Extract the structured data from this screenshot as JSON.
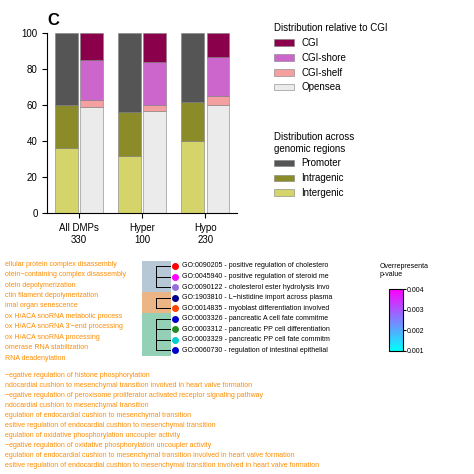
{
  "chart_data": {
    "type": "bar",
    "stacked": true,
    "title": "C",
    "categories": [
      "All DMPs\n330",
      "Hyper\n100",
      "Hypo\n230"
    ],
    "ylim": [
      0,
      100
    ],
    "yticks": [
      0,
      20,
      40,
      60,
      80,
      100
    ],
    "groups": [
      {
        "title": "Distribution across\ngenomic regions",
        "series": [
          {
            "name": "Intergenic",
            "color": "#D4D46A",
            "values": [
              36,
              32,
              40
            ]
          },
          {
            "name": "Intragenic",
            "color": "#8B8B2A",
            "values": [
              24,
              24,
              22
            ]
          },
          {
            "name": "Promoter",
            "color": "#555555",
            "values": [
              40,
              44,
              38
            ]
          }
        ]
      },
      {
        "title": "Distribution relative to CGI",
        "series": [
          {
            "name": "Opensea",
            "color": "#EBEBEB",
            "values": [
              59,
              57,
              60
            ]
          },
          {
            "name": "CGI-shelf",
            "color": "#F4A0A0",
            "values": [
              4,
              3,
              5
            ]
          },
          {
            "name": "CGI-shore",
            "color": "#CC66CC",
            "values": [
              22,
              24,
              22
            ]
          },
          {
            "name": "CGI",
            "color": "#8B004B",
            "values": [
              15,
              16,
              13
            ]
          }
        ]
      }
    ],
    "annotations": [
      {
        "color": "#FF8C00",
        "lines": [
          "ellular protein complex disassembly",
          "otein−containing complex disassembly",
          "otein depolymerization",
          "ctin filament depolymerization",
          "imal organ senescence",
          "ox H/ACA snoRNA metabolic process",
          "ox H/ACA snoRNA 3'−end processing",
          "ox H/ACA snoRNA processing",
          "omerase RNA stabilization",
          "RNA deadenylation"
        ]
      },
      {
        "color": "#FF8C00",
        "lines": [
          "−egative regulation of histone phosphorylation",
          "ndocardial cushion to mesenchymal transition involved in heart valve formation",
          "−egative regulation of peroxisome proliferator activated receptor signaling pathway",
          "ndocardial cushion to mesenchymal transition",
          "egulation of endocardial cushion to mesenchymal transition",
          "esitive regulation of endocardial cushion to mesenchymal transition",
          "egulation of oxidative phosphorylation uncoupler activity",
          "−egative regulation of oxidative phosphorylation uncoupler activity",
          "egulation of endocardial cushion to mesenchymal transition involved in heart valve formation",
          "esitive regulation of endocardial cushion to mesenchymal transition involved in heart valve formation"
        ]
      }
    ],
    "tree": [
      {
        "term": "GO:0090205 - positive regulation of cholestero",
        "color": "#FF0000",
        "bg": "#AABFCE"
      },
      {
        "term": "GO:0045940 - positive regulation of steroid me",
        "color": "#FF00FF",
        "bg": "#AABFCE"
      },
      {
        "term": "GO:0090122 - cholesterol ester hydrolysis invo",
        "color": "#9370DB",
        "bg": "#AABFCE"
      },
      {
        "term": "GO:1903810 - L−histidine import across plasma",
        "color": "#00008B",
        "bg": "#E8A870"
      },
      {
        "term": "GO:0014835 - myoblast differentiation involved",
        "color": "#FF4500",
        "bg": "#E8A870"
      },
      {
        "term": "GO:0003326 - pancreatic A cell fate commitme",
        "color": "#0000CD",
        "bg": "#80C8A8"
      },
      {
        "term": "GO:0003312 - pancreatic PP cell differentiation",
        "color": "#228B22",
        "bg": "#80C8A8"
      },
      {
        "term": "GO:0003329 - pancreatic PP cell fate commitm",
        "color": "#00CED1",
        "bg": "#80C8A8"
      },
      {
        "term": "GO:0060730 - regulation of intestinal epithelial",
        "color": "#0000CD",
        "bg": "#80C8A8"
      }
    ],
    "colorbar": {
      "title": "Overrepresenta\np-value",
      "range": [
        0.001,
        0.004
      ],
      "ticks": [
        0.001,
        0.002,
        0.003,
        0.004
      ]
    }
  }
}
